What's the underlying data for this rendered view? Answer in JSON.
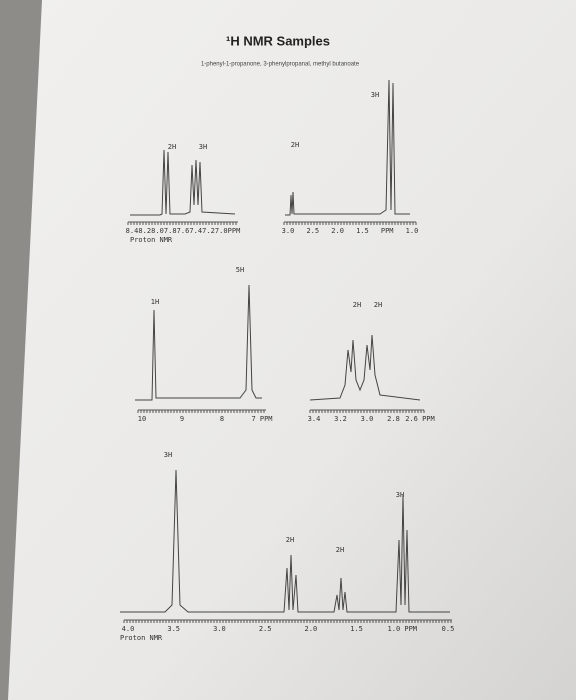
{
  "title": "¹H NMR Samples",
  "subtitle": "1-phenyl-1-propanone, 3-phenylpropanal, methyl butanoate",
  "spectra": [
    {
      "peak_labels": [
        "2H",
        "3H"
      ],
      "axis_labels": [
        "8.4",
        "8.2",
        "8.0",
        "7.8",
        "7.6",
        "7.4",
        "7.2",
        "7.0",
        "PPM"
      ],
      "caption": "Proton NMR"
    },
    {
      "peak_labels": [
        "2H",
        "3H"
      ],
      "axis_labels": [
        "3.0",
        "2.5",
        "2.0",
        "1.5",
        "PPM",
        "1.0"
      ]
    },
    {
      "peak_labels": [
        "1H",
        "5H"
      ],
      "axis_labels": [
        "10",
        "9",
        "8",
        "7 PPM"
      ]
    },
    {
      "peak_labels": [
        "2H",
        "2H"
      ],
      "axis_labels": [
        "3.4",
        "3.2",
        "3.0",
        "2.8",
        "2.6 PPM"
      ]
    },
    {
      "peak_labels": [
        "3H",
        "2H",
        "2H",
        "3H"
      ],
      "axis_labels": [
        "4.0",
        "3.5",
        "3.0",
        "2.5",
        "2.0",
        "1.5",
        "1.0 PPM",
        "0.5"
      ],
      "caption": "Proton NMR"
    }
  ]
}
